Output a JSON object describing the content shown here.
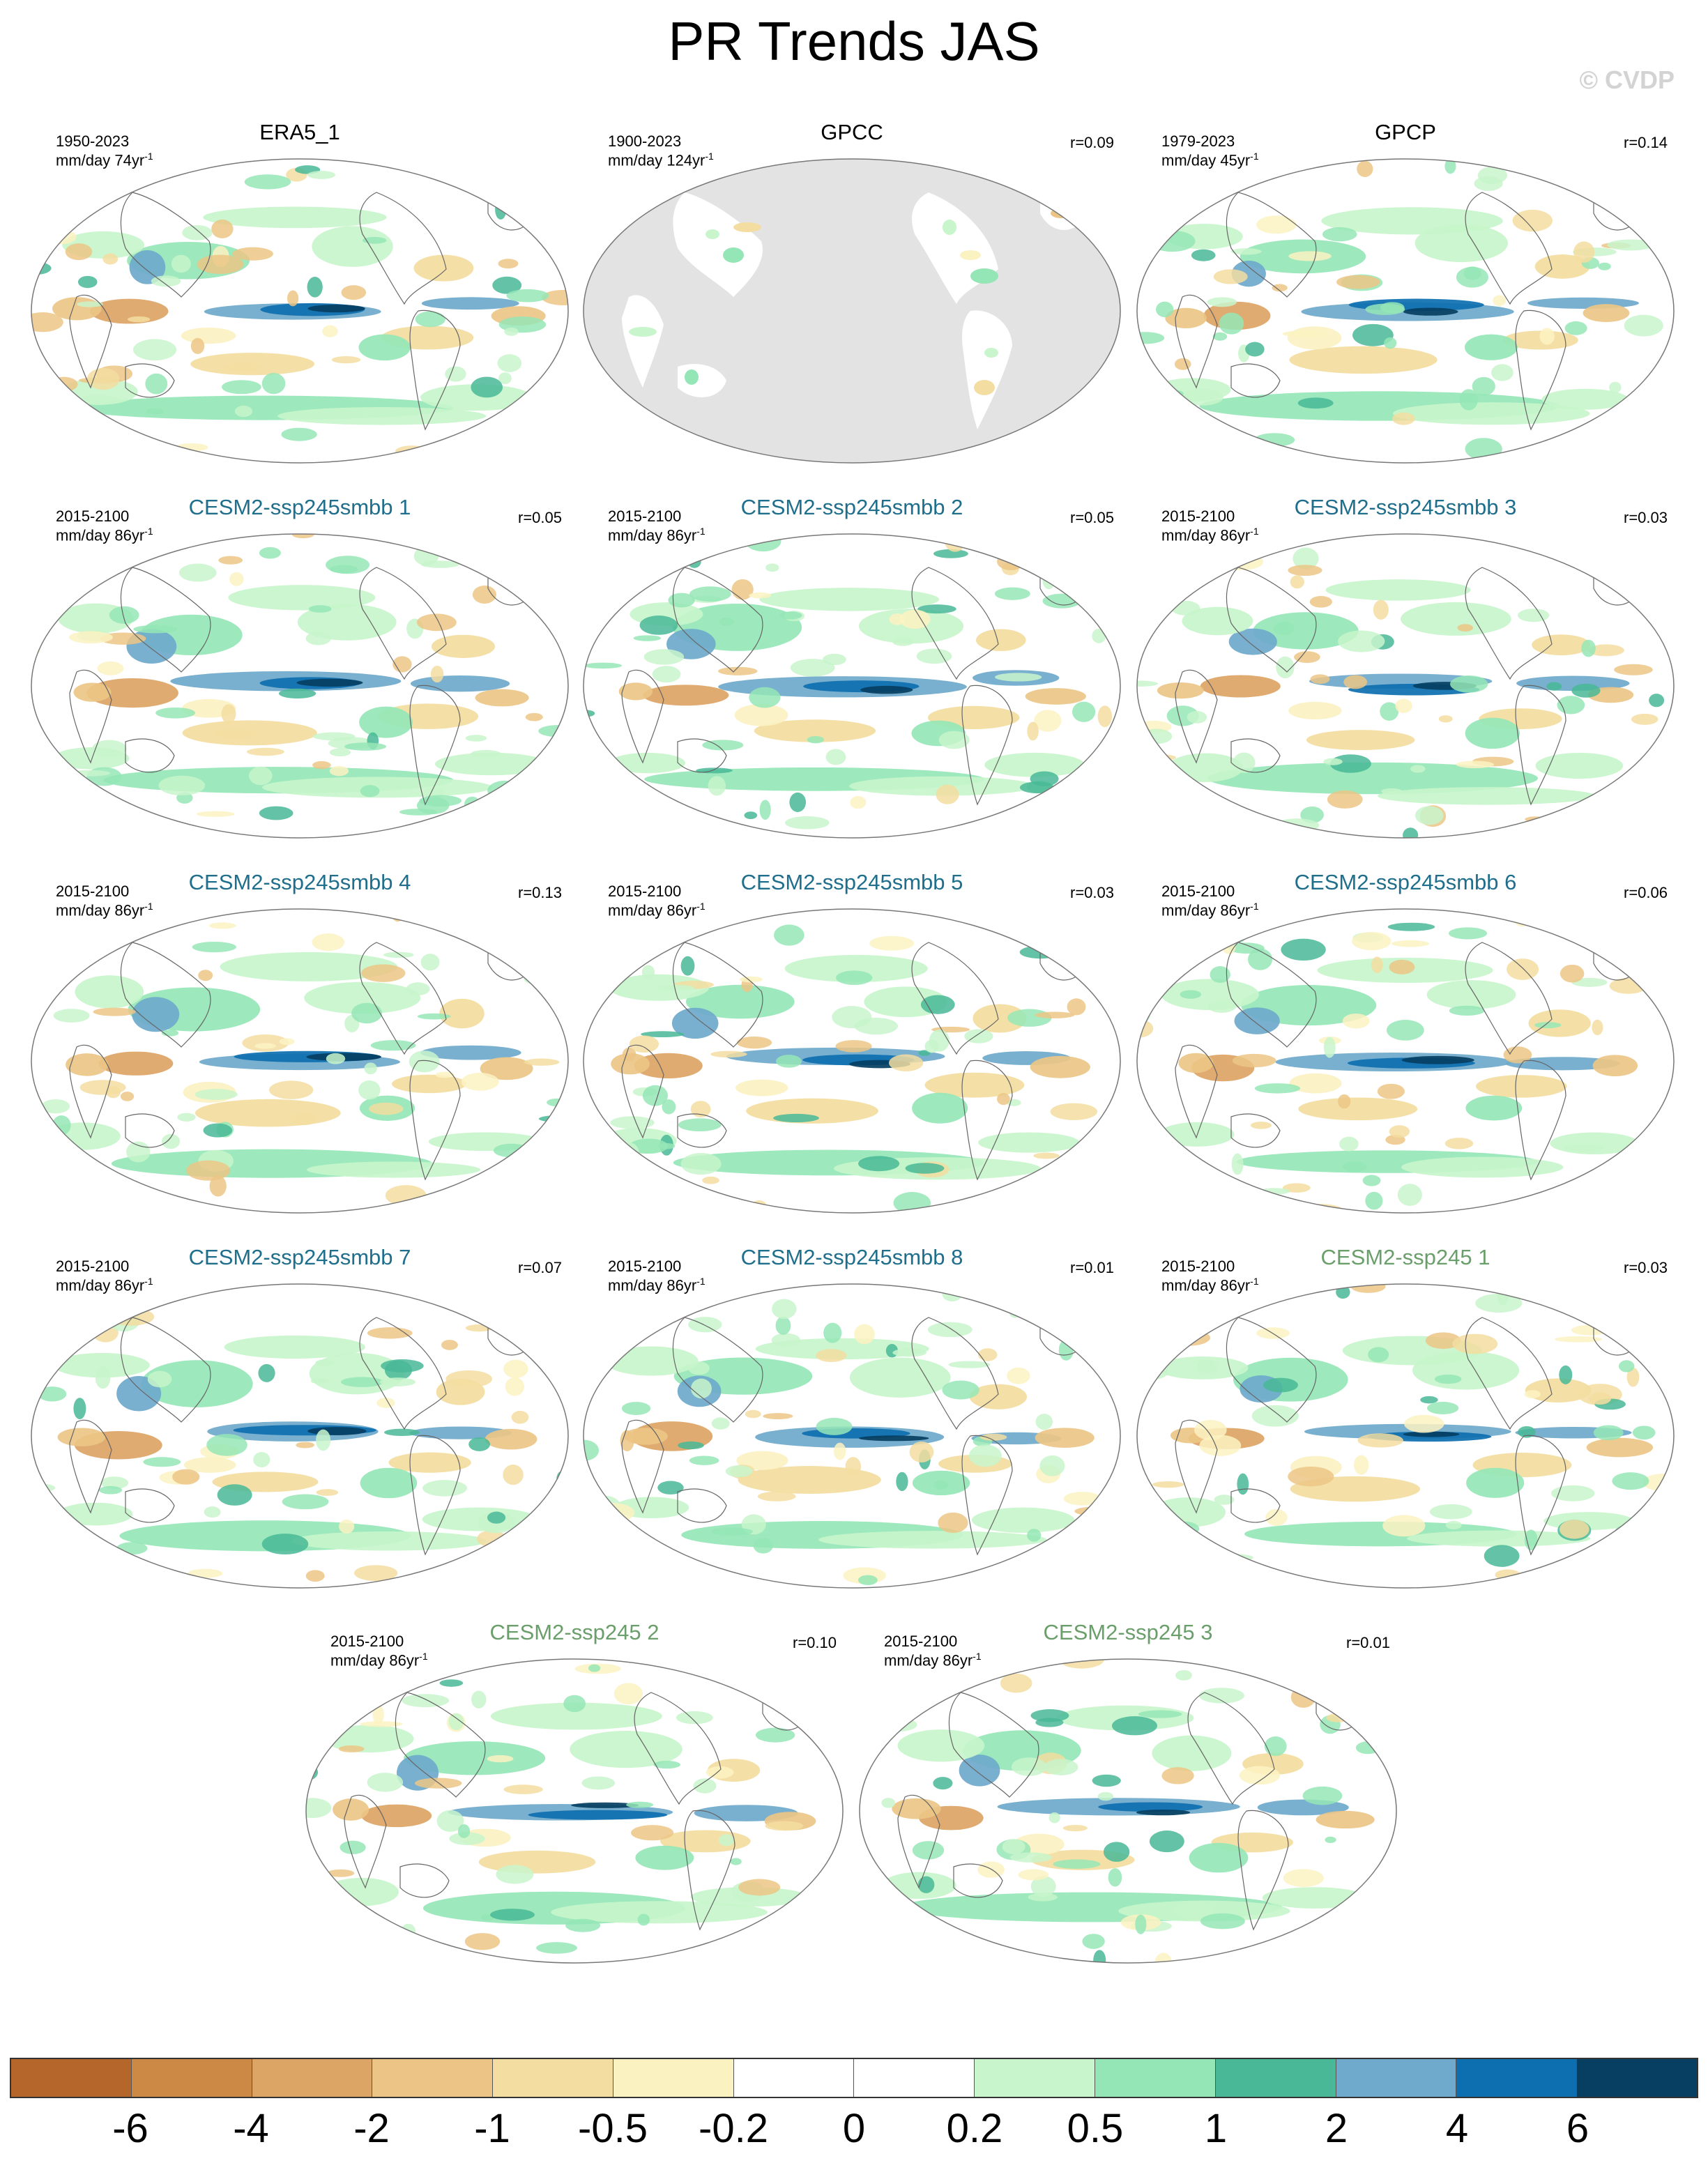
{
  "title": "PR Trends JAS",
  "watermark": "© CVDP",
  "colors": {
    "model_title_blue": "#1f6e8c",
    "model_title_green": "#6a9e6a",
    "obs_title": "#000000",
    "missing_gray": "#e3e3e3",
    "ocean_white": "#ffffff"
  },
  "panels": [
    {
      "title": "ERA5_1",
      "period": "1950-2023",
      "units": "mm/day 74yr",
      "units_exp": "-1",
      "r": "",
      "title_color": "obs",
      "background": "white"
    },
    {
      "title": "GPCC",
      "period": "1900-2023",
      "units": "mm/day 124yr",
      "units_exp": "-1",
      "r": "r=0.09",
      "title_color": "obs",
      "background": "gray"
    },
    {
      "title": "GPCP",
      "period": "1979-2023",
      "units": "mm/day 45yr",
      "units_exp": "-1",
      "r": "r=0.14",
      "title_color": "obs",
      "background": "white"
    },
    {
      "title": "CESM2-ssp245smbb 1",
      "period": "2015-2100",
      "units": "mm/day 86yr",
      "units_exp": "-1",
      "r": "r=0.05",
      "title_color": "blue",
      "background": "white"
    },
    {
      "title": "CESM2-ssp245smbb 2",
      "period": "2015-2100",
      "units": "mm/day 86yr",
      "units_exp": "-1",
      "r": "r=0.05",
      "title_color": "blue",
      "background": "white"
    },
    {
      "title": "CESM2-ssp245smbb 3",
      "period": "2015-2100",
      "units": "mm/day 86yr",
      "units_exp": "-1",
      "r": "r=0.03",
      "title_color": "blue",
      "background": "white"
    },
    {
      "title": "CESM2-ssp245smbb 4",
      "period": "2015-2100",
      "units": "mm/day 86yr",
      "units_exp": "-1",
      "r": "r=0.13",
      "title_color": "blue",
      "background": "white"
    },
    {
      "title": "CESM2-ssp245smbb 5",
      "period": "2015-2100",
      "units": "mm/day 86yr",
      "units_exp": "-1",
      "r": "r=0.03",
      "title_color": "blue",
      "background": "white"
    },
    {
      "title": "CESM2-ssp245smbb 6",
      "period": "2015-2100",
      "units": "mm/day 86yr",
      "units_exp": "-1",
      "r": "r=0.06",
      "title_color": "blue",
      "background": "white"
    },
    {
      "title": "CESM2-ssp245smbb 7",
      "period": "2015-2100",
      "units": "mm/day 86yr",
      "units_exp": "-1",
      "r": "r=0.07",
      "title_color": "blue",
      "background": "white"
    },
    {
      "title": "CESM2-ssp245smbb 8",
      "period": "2015-2100",
      "units": "mm/day 86yr",
      "units_exp": "-1",
      "r": "r=0.01",
      "title_color": "blue",
      "background": "white"
    },
    {
      "title": "CESM2-ssp245 1",
      "period": "2015-2100",
      "units": "mm/day 86yr",
      "units_exp": "-1",
      "r": "r=0.03",
      "title_color": "green",
      "background": "white"
    },
    {
      "title": "CESM2-ssp245 2",
      "period": "2015-2100",
      "units": "mm/day 86yr",
      "units_exp": "-1",
      "r": "r=0.10",
      "title_color": "green",
      "background": "white"
    },
    {
      "title": "CESM2-ssp245 3",
      "period": "2015-2100",
      "units": "mm/day 86yr",
      "units_exp": "-1",
      "r": "r=0.01",
      "title_color": "green",
      "background": "white"
    }
  ],
  "colorbar": {
    "colors": [
      "#b5662a",
      "#cc8845",
      "#dca465",
      "#ecc586",
      "#f3dda0",
      "#fbf2c2",
      "#ffffff",
      "#ffffff",
      "#c8f5cb",
      "#95e6b6",
      "#49b897",
      "#6fa9cb",
      "#0d6fb0",
      "#063f62"
    ],
    "labels": [
      "-6",
      "-4",
      "-2",
      "-1",
      "-0.5",
      "-0.2",
      "0",
      "0.2",
      "0.5",
      "1",
      "2",
      "4",
      "6"
    ]
  }
}
